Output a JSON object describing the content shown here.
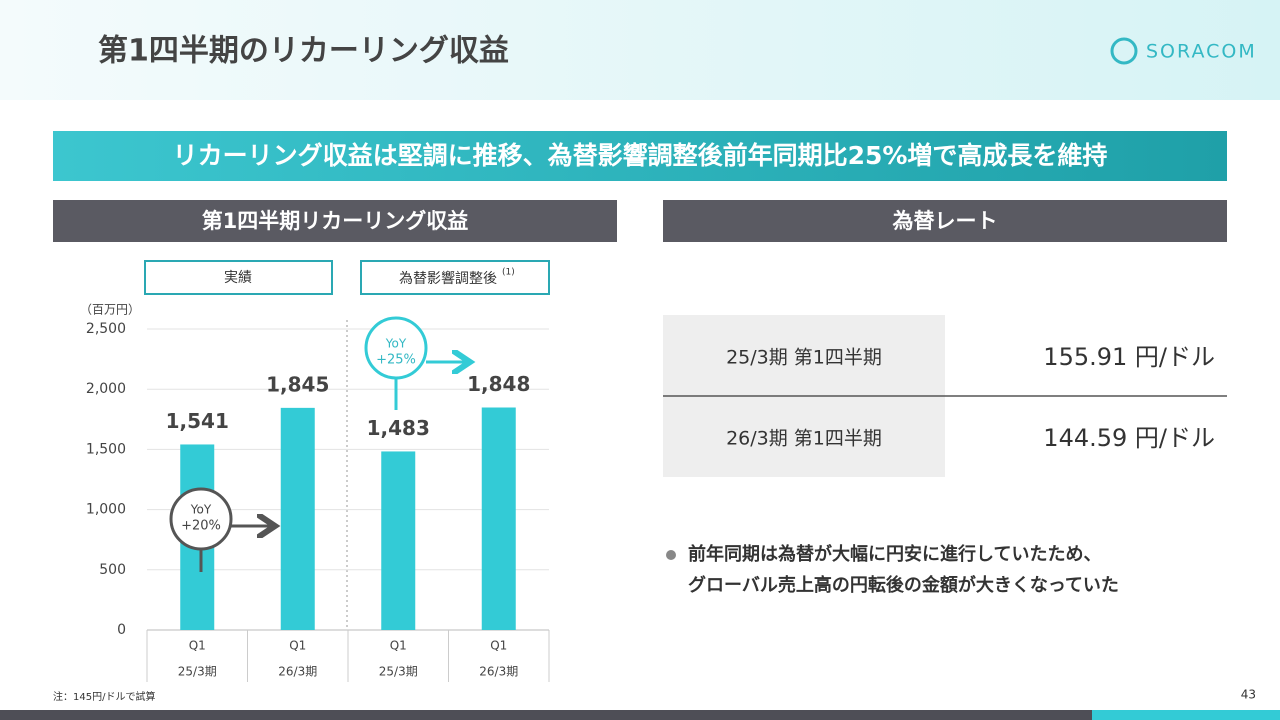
{
  "header": {
    "title": "第1四半期のリカーリング収益",
    "logo": "SORACOM"
  },
  "banner": "リカーリング収益は堅調に推移、為替影響調整後前年同期比25%増で高成長を維持",
  "chart_data": {
    "type": "bar",
    "title": "第1四半期リカーリング収益",
    "y_label": "（百万円）",
    "groups": [
      {
        "label": "実績"
      },
      {
        "label": "為替影響調整後",
        "note": "(1)"
      }
    ],
    "categories": [
      [
        "Q1",
        "25/3期"
      ],
      [
        "Q1",
        "26/3期"
      ],
      [
        "Q1",
        "25/3期"
      ],
      [
        "Q1",
        "26/3期"
      ]
    ],
    "values": [
      1541,
      1845,
      1483,
      1848
    ],
    "value_labels": [
      "1,541",
      "1,845",
      "1,483",
      "1,848"
    ],
    "color": "#33cbd6",
    "ylim": [
      0,
      2500
    ],
    "yticks": [
      0,
      500,
      {
        "value": 1000,
        "label": "1,000"
      },
      {
        "value": 1500,
        "label": "1,500"
      },
      {
        "value": 2000,
        "label": "2,000"
      },
      {
        "value": 2500,
        "label": "2,500"
      }
    ],
    "grid": true,
    "annotations": [
      {
        "title": "YoY",
        "text": "+20%"
      },
      {
        "title": "YoY",
        "text": "+25%"
      }
    ]
  },
  "rate_table": {
    "title": "為替レート",
    "rows": [
      [
        "25/3期  第1四半期",
        "155.91 円/ドル"
      ],
      [
        "26/3期  第1四半期",
        "144.59 円/ドル"
      ]
    ]
  },
  "bullet": [
    "前年同期は為替が大幅に円安に進行していたため、",
    "グローバル売上高の円転後の金額が大きくなっていた"
  ],
  "footnote": "注：145円/ドルで試算",
  "page_number": "43"
}
